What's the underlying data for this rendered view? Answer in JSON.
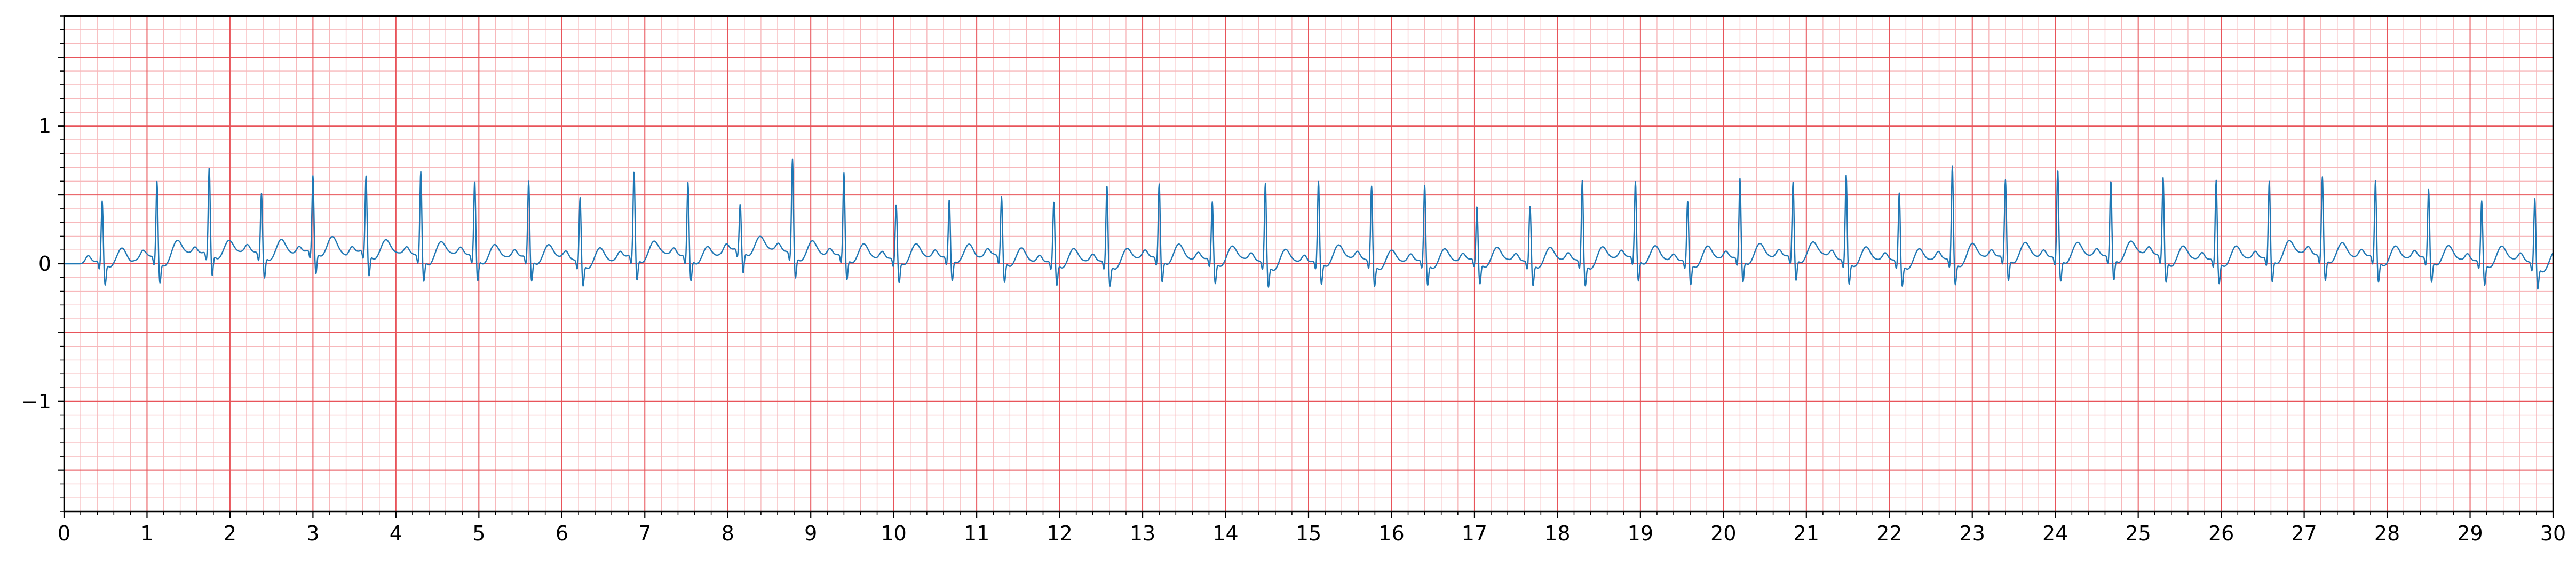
{
  "chart_data": {
    "type": "line",
    "title": "",
    "xlabel": "",
    "ylabel": "",
    "xlim": [
      0,
      30
    ],
    "ylim": [
      -1.8,
      1.8
    ],
    "grid": true,
    "legend": "none",
    "x_ticks": [
      0,
      1,
      2,
      3,
      4,
      5,
      6,
      7,
      8,
      9,
      10,
      11,
      12,
      13,
      14,
      15,
      16,
      17,
      18,
      19,
      20,
      21,
      22,
      23,
      24,
      25,
      26,
      27,
      28,
      29,
      30
    ],
    "x_tick_labels": [
      "0",
      "1",
      "2",
      "3",
      "4",
      "5",
      "6",
      "7",
      "8",
      "9",
      "10",
      "11",
      "12",
      "13",
      "14",
      "15",
      "16",
      "17",
      "18",
      "19",
      "20",
      "21",
      "22",
      "23",
      "24",
      "25",
      "26",
      "27",
      "28",
      "29",
      "30"
    ],
    "y_ticks": [
      -1,
      0,
      1
    ],
    "y_tick_labels": [
      "−1",
      "0",
      "1"
    ],
    "colors": {
      "line": "#1f77b4",
      "major_grid": "#e8545a",
      "minor_grid": "#f7b8bb",
      "axes": "#000000",
      "background": "#ffffff"
    },
    "series": [
      {
        "sampling_interval_s": 0.2,
        "values": [
          0,
          0,
          0.02,
          0.04,
          0.01,
          0.06,
          0.04,
          0.09,
          0.07,
          0.1,
          0.08,
          0.09,
          0.08,
          0.09,
          0.07,
          0.11,
          0.12,
          0.06,
          0.1,
          0.09,
          0.08,
          0.07,
          0.05,
          0.08,
          0.07,
          0.06,
          0.05,
          0.05,
          0.06,
          0.05,
          0.05,
          0.02,
          0.03,
          0.02,
          0.06,
          0.07,
          0.08,
          0.06,
          0.06,
          0.03,
          0.1,
          0.12,
          0.11,
          0.1,
          0.08,
          0.08,
          0.06,
          0.07,
          0.06,
          0.04,
          0.04,
          0.06,
          0.05,
          0.05,
          0.07,
          0.04,
          0.07,
          0.04,
          0.02,
          0.01,
          0.03,
          0.02,
          0.02,
          0.02,
          0.02,
          0.05,
          0.05,
          0.06,
          0.03,
          0.04,
          0.04,
          0.04,
          0.02,
          0.01,
          0.02,
          0.01,
          0.04,
          0.05,
          0.04,
          0.02,
          0.01,
          0.02,
          0.03,
          0.02,
          0.02,
          0.04,
          0.03,
          0.03,
          0.02,
          0.03,
          0.03,
          0.03,
          0.02,
          0.04,
          0.05,
          0.06,
          0.04,
          0.02,
          0.03,
          0.04,
          0.04,
          0.05,
          0.06,
          0.05,
          0.06,
          0.07,
          0.07,
          0.03,
          0.04,
          0.03,
          0.03,
          0.02,
          0.02,
          0.04,
          0.03,
          0.06,
          0.05,
          0.06,
          0.07,
          0.05,
          0.05,
          0.07,
          0.06,
          0.06,
          0.07,
          0.08,
          0.07,
          0.04,
          0.04,
          0.03,
          0.04,
          0.04,
          0.04,
          0.05,
          0.08,
          0.08,
          0.06,
          0.07,
          0.05,
          0.06,
          0.04,
          0.04,
          0.05,
          0.05,
          0.04,
          0.02,
          0.03,
          0.04,
          0.03,
          0
        ]
      }
    ]
  }
}
